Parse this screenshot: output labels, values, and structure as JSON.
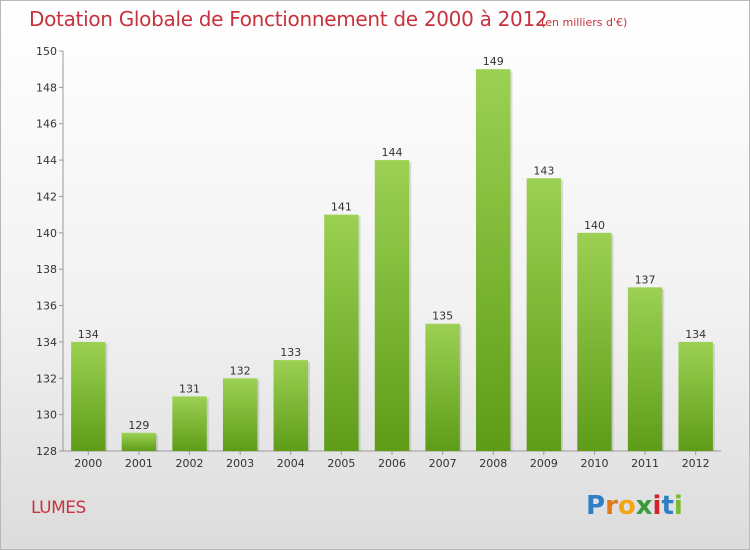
{
  "title": "Dotation Globale de Fonctionnement de 2000 à 2012",
  "subtitle": "(en milliers d'€)",
  "commune": "LUMES",
  "logo": "Proxiti",
  "colors": {
    "bar_top": "#9cd153",
    "bar_bottom": "#5e9c18",
    "title": "#c8323e"
  },
  "chart_data": {
    "type": "bar",
    "categories": [
      "2000",
      "2001",
      "2002",
      "2003",
      "2004",
      "2005",
      "2006",
      "2007",
      "2008",
      "2009",
      "2010",
      "2011",
      "2012"
    ],
    "values": [
      134,
      129,
      131,
      132,
      133,
      141,
      144,
      135,
      149,
      143,
      140,
      137,
      134
    ],
    "ylim": [
      128,
      150
    ],
    "yticks": [
      128,
      130,
      132,
      134,
      136,
      138,
      140,
      142,
      144,
      146,
      148,
      150
    ],
    "grid": false,
    "legend": "none"
  }
}
